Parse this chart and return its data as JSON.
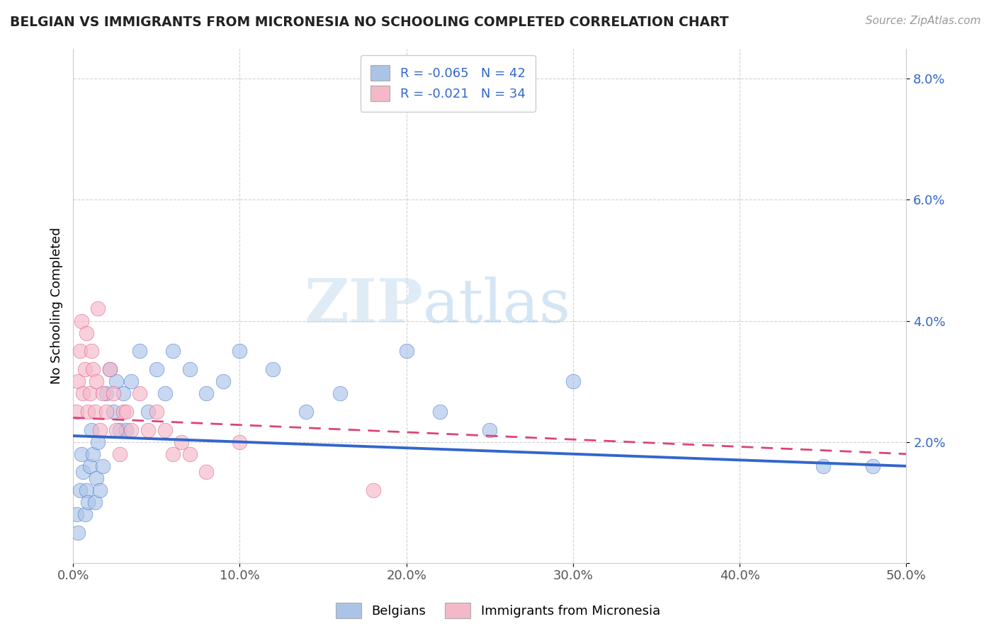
{
  "title": "BELGIAN VS IMMIGRANTS FROM MICRONESIA NO SCHOOLING COMPLETED CORRELATION CHART",
  "source_text": "Source: ZipAtlas.com",
  "xlabel": "",
  "ylabel": "No Schooling Completed",
  "legend1_label": "Belgians",
  "legend2_label": "Immigrants from Micronesia",
  "r1": -0.065,
  "n1": 42,
  "r2": -0.021,
  "n2": 34,
  "color1": "#aac4e8",
  "color2": "#f5b8c8",
  "line1_color": "#3366cc",
  "line2_color": "#dd4477",
  "xlim": [
    0.0,
    0.5
  ],
  "ylim": [
    0.0,
    0.085
  ],
  "xtick_labels": [
    "0.0%",
    "10.0%",
    "20.0%",
    "30.0%",
    "40.0%",
    "50.0%"
  ],
  "xtick_vals": [
    0.0,
    0.1,
    0.2,
    0.3,
    0.4,
    0.5
  ],
  "ytick_labels": [
    "",
    "2.0%",
    "4.0%",
    "6.0%",
    "8.0%"
  ],
  "ytick_vals": [
    0.0,
    0.02,
    0.04,
    0.06,
    0.08
  ],
  "watermark_zip": "ZIP",
  "watermark_atlas": "atlas",
  "belgians_x": [
    0.002,
    0.003,
    0.004,
    0.005,
    0.006,
    0.007,
    0.008,
    0.009,
    0.01,
    0.011,
    0.012,
    0.013,
    0.014,
    0.015,
    0.016,
    0.018,
    0.02,
    0.022,
    0.024,
    0.026,
    0.028,
    0.03,
    0.032,
    0.035,
    0.04,
    0.045,
    0.05,
    0.055,
    0.06,
    0.07,
    0.08,
    0.09,
    0.1,
    0.12,
    0.14,
    0.16,
    0.2,
    0.22,
    0.25,
    0.3,
    0.45,
    0.48
  ],
  "belgians_y": [
    0.008,
    0.005,
    0.012,
    0.018,
    0.015,
    0.008,
    0.012,
    0.01,
    0.016,
    0.022,
    0.018,
    0.01,
    0.014,
    0.02,
    0.012,
    0.016,
    0.028,
    0.032,
    0.025,
    0.03,
    0.022,
    0.028,
    0.022,
    0.03,
    0.035,
    0.025,
    0.032,
    0.028,
    0.035,
    0.032,
    0.028,
    0.03,
    0.035,
    0.032,
    0.025,
    0.028,
    0.035,
    0.025,
    0.022,
    0.03,
    0.016,
    0.016
  ],
  "micronesia_x": [
    0.002,
    0.003,
    0.004,
    0.005,
    0.006,
    0.007,
    0.008,
    0.009,
    0.01,
    0.011,
    0.012,
    0.013,
    0.014,
    0.015,
    0.016,
    0.018,
    0.02,
    0.022,
    0.024,
    0.026,
    0.028,
    0.03,
    0.032,
    0.035,
    0.04,
    0.045,
    0.05,
    0.055,
    0.06,
    0.065,
    0.07,
    0.08,
    0.1,
    0.18
  ],
  "micronesia_y": [
    0.025,
    0.03,
    0.035,
    0.04,
    0.028,
    0.032,
    0.038,
    0.025,
    0.028,
    0.035,
    0.032,
    0.025,
    0.03,
    0.042,
    0.022,
    0.028,
    0.025,
    0.032,
    0.028,
    0.022,
    0.018,
    0.025,
    0.025,
    0.022,
    0.028,
    0.022,
    0.025,
    0.022,
    0.018,
    0.02,
    0.018,
    0.015,
    0.02,
    0.012
  ]
}
